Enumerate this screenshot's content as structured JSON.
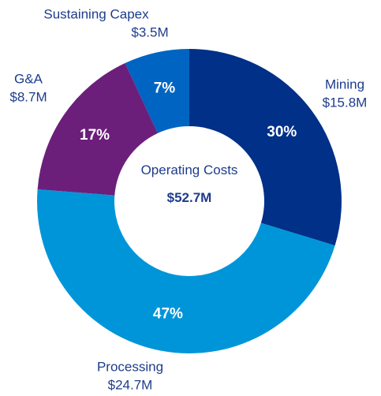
{
  "chart_data": {
    "type": "donut",
    "center_label": "Operating Costs",
    "total_label": "$52.7M",
    "categories": [
      "Mining",
      "Processing",
      "G&A",
      "Sustaining Capex"
    ],
    "amount_labels": [
      "$15.8M",
      "$24.7M",
      "$8.7M",
      "$3.5M"
    ],
    "values": [
      30,
      47,
      17,
      7
    ],
    "value_labels": [
      "30%",
      "47%",
      "17%",
      "7%"
    ],
    "colors": [
      "#003087",
      "#0095d9",
      "#6b1f7b",
      "#0064c2"
    ]
  }
}
